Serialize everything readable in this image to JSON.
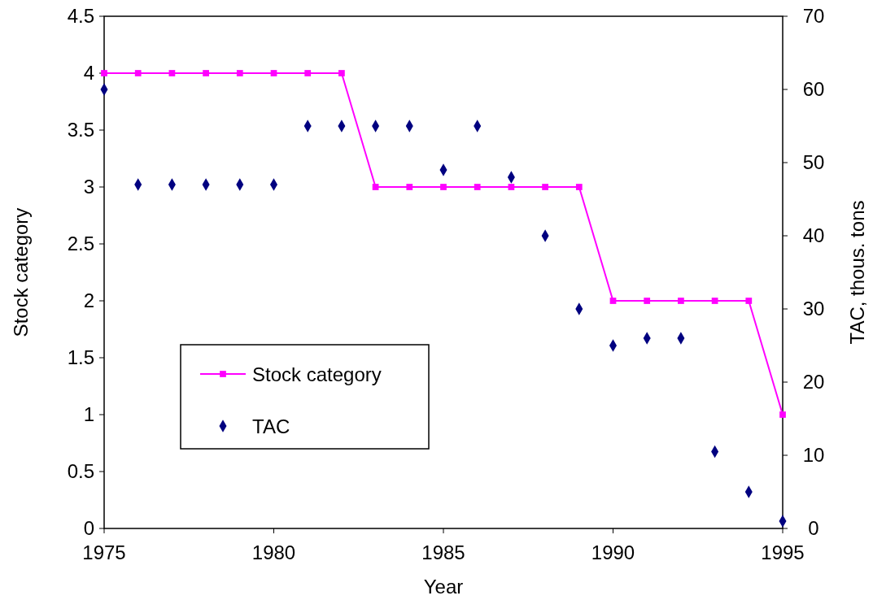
{
  "chart_data": {
    "type": "line",
    "xlabel": "Year",
    "ylabel": "Stock category",
    "y2label": "TAC, thous. tons",
    "x": [
      1975,
      1976,
      1977,
      1978,
      1979,
      1980,
      1981,
      1982,
      1983,
      1984,
      1985,
      1986,
      1987,
      1988,
      1989,
      1990,
      1991,
      1992,
      1993,
      1994,
      1995
    ],
    "series": [
      {
        "name": "Stock category",
        "color": "#ff00ff",
        "marker": "square",
        "values": [
          4,
          4,
          4,
          4,
          4,
          4,
          4,
          4,
          3,
          3,
          3,
          3,
          3,
          3,
          3,
          2,
          2,
          2,
          2,
          2,
          1
        ]
      },
      {
        "name": "TAC",
        "type": "scatter",
        "axis": "y2",
        "color": "#000080",
        "marker": "diamond",
        "values": [
          60,
          47,
          47,
          47,
          47,
          47,
          55,
          55,
          55,
          55,
          49,
          55,
          48,
          40,
          30,
          25,
          26,
          26,
          10.5,
          5,
          1
        ]
      }
    ],
    "xlim": [
      1975,
      1995
    ],
    "xticks": [
      1975,
      1980,
      1985,
      1990,
      1995
    ],
    "ylim": [
      0,
      4.5
    ],
    "yticks": [
      0,
      0.5,
      1,
      1.5,
      2,
      2.5,
      3,
      3.5,
      4,
      4.5
    ],
    "y2lim": [
      0,
      70
    ],
    "y2ticks": [
      0,
      10,
      20,
      30,
      40,
      50,
      60,
      70
    ],
    "legend": "left",
    "grid": false
  }
}
